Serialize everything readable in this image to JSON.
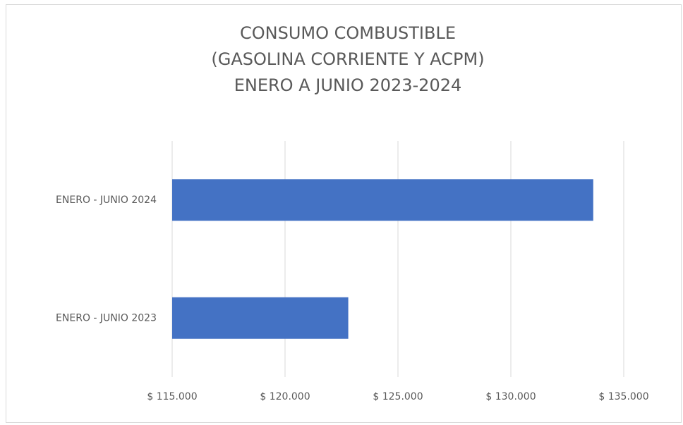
{
  "chart_data": {
    "type": "bar",
    "orientation": "horizontal",
    "title": [
      "CONSUMO COMBUSTIBLE",
      "(GASOLINA CORRIENTE Y ACPM)",
      "ENERO A JUNIO 2023-2024"
    ],
    "categories": [
      "ENERO - JUNIO 2023",
      "ENERO - JUNIO 2024"
    ],
    "values": [
      122800,
      133650
    ],
    "color": "#4472c4",
    "xlim": [
      115000,
      135000
    ],
    "xticks": [
      {
        "value": 115000,
        "label": "$ 115.000"
      },
      {
        "value": 120000,
        "label": "$ 120.000"
      },
      {
        "value": 125000,
        "label": "$ 125.000"
      },
      {
        "value": 130000,
        "label": "$ 130.000"
      },
      {
        "value": 135000,
        "label": "$ 135.000"
      }
    ],
    "grid": true
  }
}
